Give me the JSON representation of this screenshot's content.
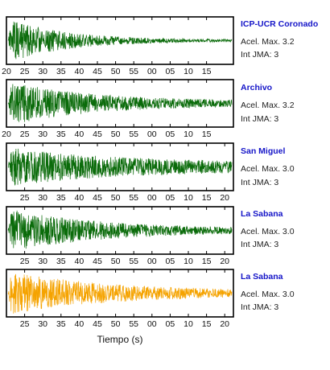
{
  "colors": {
    "green": "#0a6b0a",
    "orange": "#f5a300",
    "station_label": "#1515c8",
    "frame": "#000000"
  },
  "x_axis_title": "Tiempo (s)",
  "chart_data": [
    {
      "type": "line",
      "series": [
        {
          "color": "#0a6b0a"
        }
      ],
      "station": "ICP-UCR Coronado",
      "accel_label": "Acel. Max. 3.2",
      "jma_label": "Int JMA: 3",
      "tick_labels": [
        "20",
        "25",
        "30",
        "35",
        "40",
        "45",
        "50",
        "55",
        "00",
        "05",
        "10",
        "15"
      ],
      "tick_offset": 0,
      "amplitude": 1.0,
      "decay": 4.0,
      "tail": 0.05,
      "seed": 11
    },
    {
      "type": "line",
      "series": [
        {
          "color": "#0a6b0a"
        }
      ],
      "station": "Archivo",
      "accel_label": "Acel. Max. 3.2",
      "jma_label": "Int JMA: 3",
      "tick_labels": [
        "20",
        "25",
        "30",
        "35",
        "40",
        "45",
        "50",
        "55",
        "00",
        "05",
        "10",
        "15"
      ],
      "tick_offset": 0,
      "amplitude": 1.0,
      "decay": 2.6,
      "tail": 0.1,
      "seed": 23
    },
    {
      "type": "line",
      "series": [
        {
          "color": "#0a6b0a"
        }
      ],
      "station": "San Miguel",
      "accel_label": "Acel. Max. 3.0",
      "jma_label": "Int JMA: 3",
      "tick_labels": [
        "25",
        "30",
        "35",
        "40",
        "45",
        "50",
        "55",
        "00",
        "05",
        "10",
        "15",
        "20"
      ],
      "tick_offset": 1,
      "amplitude": 0.9,
      "decay": 2.0,
      "tail": 0.22,
      "seed": 37
    },
    {
      "type": "line",
      "series": [
        {
          "color": "#0a6b0a"
        }
      ],
      "station": "La Sabana",
      "accel_label": "Acel. Max. 3.0",
      "jma_label": "Int JMA: 3",
      "tick_labels": [
        "25",
        "30",
        "35",
        "40",
        "45",
        "50",
        "55",
        "00",
        "05",
        "10",
        "15",
        "20"
      ],
      "tick_offset": 1,
      "amplitude": 1.0,
      "decay": 2.4,
      "tail": 0.08,
      "seed": 53
    },
    {
      "type": "line",
      "series": [
        {
          "color": "#f5a300"
        }
      ],
      "station": "La Sabana",
      "accel_label": "Acel. Max. 3.0",
      "jma_label": "Int JMA: 3",
      "tick_labels": [
        "25",
        "30",
        "35",
        "40",
        "45",
        "50",
        "55",
        "00",
        "05",
        "10",
        "15",
        "20"
      ],
      "tick_offset": 1,
      "amplitude": 1.0,
      "decay": 2.2,
      "tail": 0.1,
      "seed": 71
    }
  ]
}
